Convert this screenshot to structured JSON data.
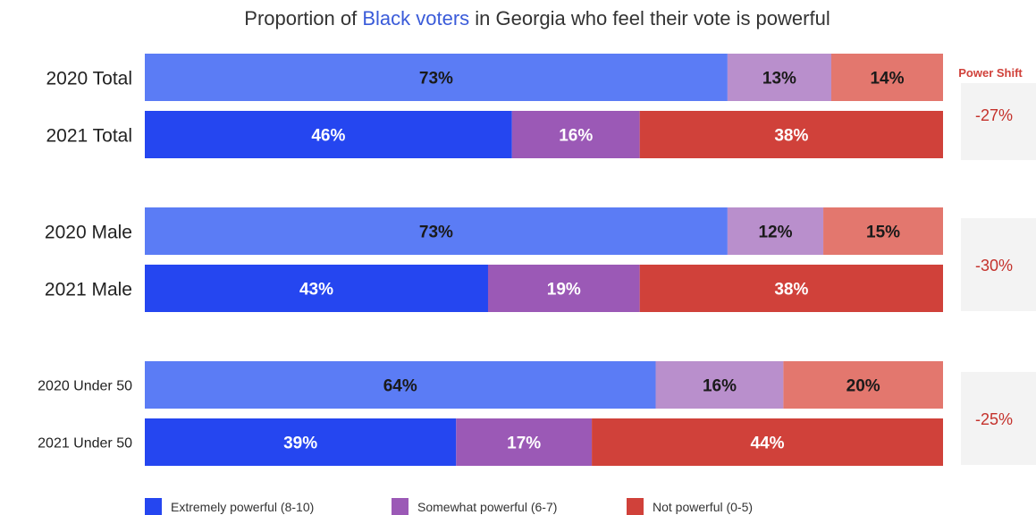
{
  "chart_data": {
    "type": "bar",
    "orientation": "horizontal",
    "stacked": true,
    "percent_scale": true,
    "title_parts": [
      {
        "text": "Proportion of ",
        "highlight": false
      },
      {
        "text": "Black voters",
        "highlight": true
      },
      {
        "text": " in Georgia who feel their vote is powerful",
        "highlight": false
      }
    ],
    "highlight_color": "#3a5bd9",
    "xlim": [
      0,
      100
    ],
    "series": [
      {
        "name": "Extremely powerful (8-10)",
        "color_2020": "#5b7cf5",
        "color_2021": "#2546f0",
        "label_color_2020": "#1a1a1a",
        "label_color_2021": "#ffffff"
      },
      {
        "name": "Somewhat powerful (6-7)",
        "color_2020": "#b98fcc",
        "color_2021": "#9b59b6",
        "label_color_2020": "#1a1a1a",
        "label_color_2021": "#ffffff"
      },
      {
        "name": "Not powerful (0-5)",
        "color_2020": "#e3776e",
        "color_2021": "#d0413a",
        "label_color_2020": "#1a1a1a",
        "label_color_2021": "#ffffff"
      }
    ],
    "groups": [
      {
        "rows": [
          {
            "label": "2020 Total",
            "year": "2020",
            "values": [
              73,
              13,
              14
            ],
            "labels": [
              "73%",
              "13%",
              "14%"
            ]
          },
          {
            "label": "2021 Total",
            "year": "2021",
            "values": [
              46,
              16,
              38
            ],
            "labels": [
              "46%",
              "16%",
              "38%"
            ]
          }
        ],
        "power_shift": "-27%"
      },
      {
        "rows": [
          {
            "label": "2020 Male",
            "year": "2020",
            "values": [
              73,
              12,
              15
            ],
            "labels": [
              "73%",
              "12%",
              "15%"
            ]
          },
          {
            "label": "2021 Male",
            "year": "2021",
            "values": [
              43,
              19,
              38
            ],
            "labels": [
              "43%",
              "19%",
              "38%"
            ]
          }
        ],
        "power_shift": "-30%"
      },
      {
        "rows": [
          {
            "label": "2020 Under 50",
            "year": "2020",
            "values": [
              64,
              16,
              20
            ],
            "labels": [
              "64%",
              "16%",
              "20%"
            ]
          },
          {
            "label": "2021 Under 50",
            "year": "2021",
            "values": [
              39,
              17,
              44
            ],
            "labels": [
              "39%",
              "17%",
              "44%"
            ]
          }
        ],
        "power_shift": "-25%"
      }
    ],
    "power_shift_header": "Power Shift",
    "legend": [
      "Extremely powerful (8-10)",
      "Somewhat powerful (6-7)",
      "Not powerful (0-5)"
    ],
    "legend_position": "bottom"
  }
}
